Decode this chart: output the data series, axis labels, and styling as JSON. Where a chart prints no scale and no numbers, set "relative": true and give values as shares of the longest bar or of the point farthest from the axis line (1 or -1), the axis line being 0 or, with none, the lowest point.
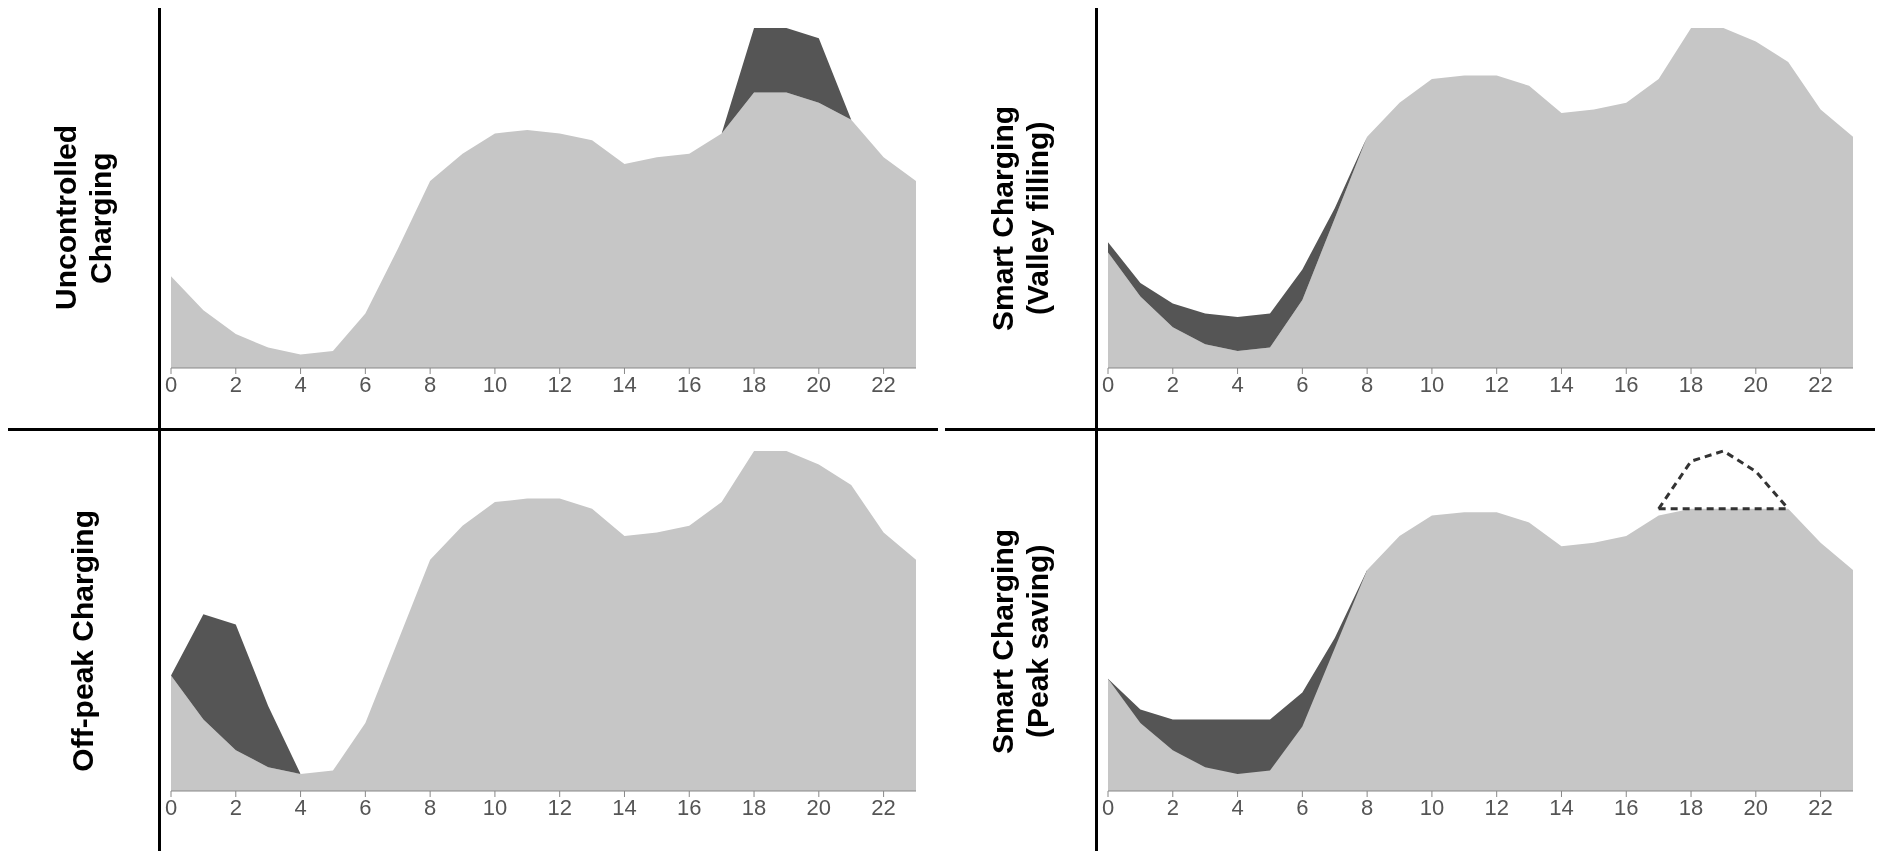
{
  "chart_data": [
    {
      "type": "area",
      "ylabel": "Uncontrolled Charging",
      "relative": true,
      "stacked": true,
      "tick_labels": "x",
      "x": [
        0,
        1,
        2,
        3,
        4,
        5,
        6,
        7,
        8,
        9,
        10,
        11,
        12,
        13,
        14,
        15,
        16,
        17,
        18,
        19,
        20,
        21,
        22,
        23
      ],
      "xlim": [
        0,
        23
      ],
      "xticks": [
        0,
        2,
        4,
        6,
        8,
        10,
        12,
        14,
        16,
        18,
        20,
        22
      ],
      "series": [
        {
          "color": "#c6c6c6",
          "values": [
            0.27,
            0.17,
            0.1,
            0.06,
            0.04,
            0.05,
            0.16,
            0.35,
            0.55,
            0.63,
            0.69,
            0.7,
            0.69,
            0.67,
            0.6,
            0.62,
            0.63,
            0.69,
            0.81,
            0.81,
            0.78,
            0.73,
            0.62,
            0.55
          ]
        },
        {
          "color": "#555555",
          "values": [
            0,
            0,
            0,
            0,
            0,
            0,
            0,
            0,
            0,
            0,
            0,
            0,
            0,
            0,
            0,
            0,
            0,
            0,
            0.19,
            0.19,
            0.19,
            0,
            0,
            0
          ]
        }
      ]
    },
    {
      "type": "area",
      "ylabel": "Smart Charging (Valley filling)",
      "relative": true,
      "stacked": true,
      "tick_labels": "x",
      "x": [
        0,
        1,
        2,
        3,
        4,
        5,
        6,
        7,
        8,
        9,
        10,
        11,
        12,
        13,
        14,
        15,
        16,
        17,
        18,
        19,
        20,
        21,
        22,
        23
      ],
      "xlim": [
        0,
        23
      ],
      "xticks": [
        0,
        2,
        4,
        6,
        8,
        10,
        12,
        14,
        16,
        18,
        20,
        22
      ],
      "series": [
        {
          "color": "#c6c6c6",
          "values": [
            0.34,
            0.21,
            0.12,
            0.07,
            0.05,
            0.06,
            0.2,
            0.44,
            0.68,
            0.78,
            0.85,
            0.86,
            0.86,
            0.83,
            0.75,
            0.76,
            0.78,
            0.85,
            1.0,
            1.0,
            0.96,
            0.9,
            0.76,
            0.68
          ]
        },
        {
          "color": "#555555",
          "values": [
            0.03,
            0.04,
            0.07,
            0.09,
            0.1,
            0.1,
            0.09,
            0.03,
            0,
            0,
            0,
            0,
            0,
            0,
            0,
            0,
            0,
            0,
            0,
            0,
            0,
            0,
            0,
            0
          ]
        }
      ]
    },
    {
      "type": "area",
      "ylabel": "Off-peak Charging",
      "relative": true,
      "stacked": true,
      "tick_labels": "x",
      "x": [
        0,
        1,
        2,
        3,
        4,
        5,
        6,
        7,
        8,
        9,
        10,
        11,
        12,
        13,
        14,
        15,
        16,
        17,
        18,
        19,
        20,
        21,
        22,
        23
      ],
      "xlim": [
        0,
        23
      ],
      "xticks": [
        0,
        2,
        4,
        6,
        8,
        10,
        12,
        14,
        16,
        18,
        20,
        22
      ],
      "series": [
        {
          "color": "#c6c6c6",
          "values": [
            0.34,
            0.21,
            0.12,
            0.07,
            0.05,
            0.06,
            0.2,
            0.44,
            0.68,
            0.78,
            0.85,
            0.86,
            0.86,
            0.83,
            0.75,
            0.76,
            0.78,
            0.85,
            1.0,
            1.0,
            0.96,
            0.9,
            0.76,
            0.68
          ]
        },
        {
          "color": "#555555",
          "values": [
            0,
            0.31,
            0.37,
            0.18,
            0,
            0,
            0,
            0,
            0,
            0,
            0,
            0,
            0,
            0,
            0,
            0,
            0,
            0,
            0,
            0,
            0,
            0,
            0,
            0
          ]
        }
      ]
    },
    {
      "type": "area",
      "ylabel": "Smart Charging (Peak saving)",
      "relative": true,
      "tick_labels": "x",
      "x": [
        0,
        1,
        2,
        3,
        4,
        5,
        6,
        7,
        8,
        9,
        10,
        11,
        12,
        13,
        14,
        15,
        16,
        17,
        18,
        19,
        20,
        21,
        22,
        23
      ],
      "xlim": [
        0,
        23
      ],
      "xticks": [
        0,
        2,
        4,
        6,
        8,
        10,
        12,
        14,
        16,
        18,
        20,
        22
      ],
      "series": [
        {
          "color": "#555555",
          "values": [
            0.33,
            0.24,
            0.21,
            0.21,
            0.21,
            0.21,
            0.29,
            0.45,
            0.65,
            null,
            null,
            null,
            null,
            null,
            null,
            null,
            null,
            null,
            null,
            null,
            null,
            null,
            null,
            null
          ]
        },
        {
          "color": "#c6c6c6",
          "values": [
            0.33,
            0.2,
            0.12,
            0.07,
            0.05,
            0.06,
            0.19,
            0.42,
            0.65,
            0.75,
            0.81,
            0.82,
            0.82,
            0.79,
            0.72,
            0.73,
            0.75,
            0.81,
            0.83,
            0.83,
            0.83,
            0.83,
            0.73,
            0.65
          ]
        },
        {
          "type": "line",
          "line_style": "dashed",
          "color": "#333333",
          "values": [
            null,
            null,
            null,
            null,
            null,
            null,
            null,
            null,
            null,
            null,
            null,
            null,
            null,
            null,
            null,
            null,
            null,
            0.83,
            0.97,
            1.0,
            0.94,
            0.83,
            null,
            null
          ]
        },
        {
          "type": "line",
          "line_style": "dashed",
          "color": "#333333",
          "values": [
            null,
            null,
            null,
            null,
            null,
            null,
            null,
            null,
            null,
            null,
            null,
            null,
            null,
            null,
            null,
            null,
            null,
            0.83,
            0.83,
            0.83,
            0.83,
            0.83,
            null,
            null
          ]
        }
      ]
    }
  ]
}
